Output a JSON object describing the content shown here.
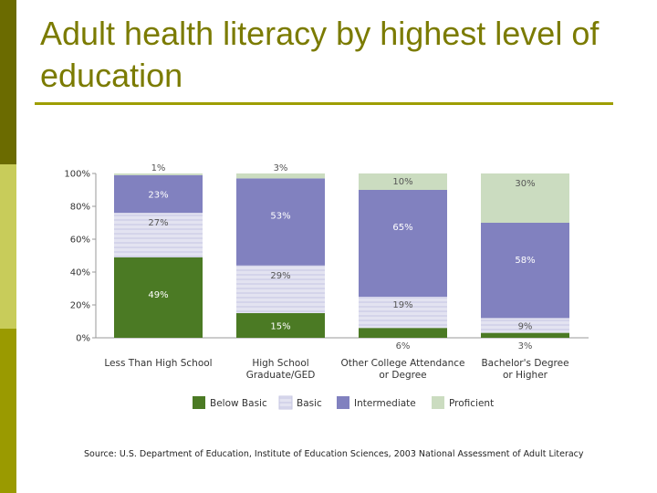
{
  "title": "Adult health literacy by highest level of education",
  "source": "Source: U.S. Department of Education, Institute of Education Sciences, 2003 National Assessment of Adult Literacy",
  "colors": {
    "side_dark": "#6b6b00",
    "side_light": "#c8cc5a",
    "side_mid": "#9a9a00",
    "title": "#7b7b00",
    "rule": "#9e9e00"
  },
  "chart_data": {
    "type": "bar",
    "stacked": true,
    "categories": [
      [
        "Less Than High School"
      ],
      [
        "High School",
        "Graduate/GED"
      ],
      [
        "Other College Attendance",
        "or Degree"
      ],
      [
        "Bachelor's Degree",
        "or Higher"
      ]
    ],
    "series": [
      {
        "name": "Below Basic",
        "color": "#4b7a24",
        "pattern": "solid",
        "values": [
          49,
          15,
          6,
          3
        ],
        "labels": [
          "49%",
          "15%",
          "6%",
          "3%"
        ]
      },
      {
        "name": "Basic",
        "color": "#e3e3f1",
        "pattern": "stripes",
        "values": [
          27,
          29,
          19,
          9
        ],
        "labels": [
          "27%",
          "29%",
          "19%",
          "9%"
        ]
      },
      {
        "name": "Intermediate",
        "color": "#8181bf",
        "pattern": "solid",
        "values": [
          23,
          53,
          65,
          58
        ],
        "labels": [
          "23%",
          "53%",
          "65%",
          "58%"
        ]
      },
      {
        "name": "Proficient",
        "color": "#cbdcc0",
        "pattern": "solid",
        "values": [
          1,
          3,
          10,
          30
        ],
        "labels": [
          "1%",
          "3%",
          "10%",
          "30%"
        ]
      }
    ],
    "yticks": [
      "0%",
      "20%",
      "40%",
      "60%",
      "80%",
      "100%"
    ],
    "ylim": [
      0,
      100
    ],
    "legend_position": "bottom",
    "grid": false
  }
}
